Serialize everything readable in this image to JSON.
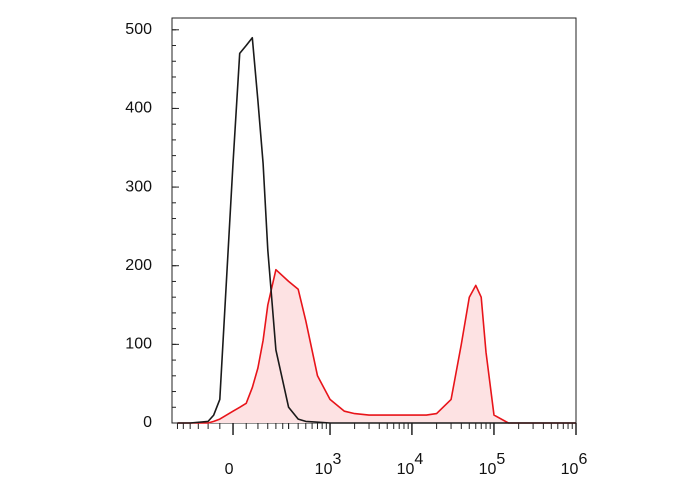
{
  "chart_data": {
    "type": "histogram-overlay",
    "xscale": "biexponential",
    "xlim": [
      -354,
      1000000
    ],
    "xticks": [
      {
        "value": 0,
        "label": "0"
      },
      {
        "value": 1000,
        "label": "10",
        "power": "3"
      },
      {
        "value": 10000,
        "label": "10",
        "power": "4"
      },
      {
        "value": 100000,
        "label": "10",
        "power": "5"
      },
      {
        "value": 1000000,
        "label": "10",
        "power": "6"
      }
    ],
    "ylim": [
      0,
      515
    ],
    "yticks": [
      0,
      100,
      200,
      300,
      400,
      500
    ],
    "x": [
      -300,
      -200,
      -100,
      -75,
      -50,
      0,
      25,
      50,
      75,
      100,
      125,
      150,
      200,
      300,
      400,
      500,
      700,
      1000,
      1500,
      2000,
      3000,
      5000,
      7000,
      10000,
      15000,
      20000,
      30000,
      40000,
      50000,
      60000,
      70000,
      80000,
      100000,
      150000,
      300000,
      1000000
    ],
    "series": [
      {
        "color": "#1a1a1a",
        "values": [
          0,
          0,
          2,
          10,
          30,
          330,
          470,
          480,
          490,
          410,
          330,
          220,
          93,
          20,
          5,
          2,
          1,
          0,
          0,
          0,
          0,
          0,
          0,
          0,
          0,
          0,
          0,
          0,
          0,
          0,
          0,
          0,
          0,
          0,
          0,
          0
        ]
      },
      {
        "color": "#e8141a",
        "fill": "#fde2e3",
        "values": [
          0,
          0,
          0,
          2,
          5,
          15,
          20,
          25,
          45,
          70,
          105,
          150,
          195,
          180,
          170,
          130,
          60,
          30,
          15,
          12,
          10,
          10,
          10,
          10,
          10,
          12,
          30,
          100,
          160,
          175,
          160,
          90,
          10,
          0,
          0,
          0
        ]
      }
    ]
  }
}
